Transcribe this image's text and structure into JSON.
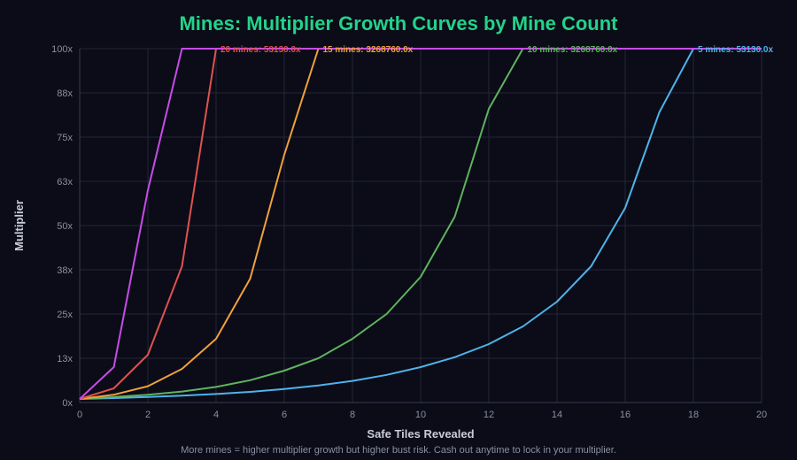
{
  "chart_data": {
    "type": "line",
    "title": "Mines: Multiplier Growth Curves by Mine Count",
    "title_color": "#22d38a",
    "xlabel": "Safe Tiles Revealed",
    "ylabel": "Multiplier",
    "footnote": "More mines = higher multiplier growth but higher bust risk. Cash out anytime to lock in your multiplier.",
    "xlim": [
      0,
      20
    ],
    "ylim": [
      0,
      100
    ],
    "x_ticks": [
      0,
      2,
      4,
      6,
      8,
      10,
      12,
      14,
      16,
      18,
      20
    ],
    "y_ticks": [
      0,
      12.5,
      25,
      37.5,
      50,
      62.5,
      75,
      87.5,
      100
    ],
    "y_tick_labels": [
      "0x",
      "13x",
      "25x",
      "38x",
      "50x",
      "63x",
      "75x",
      "88x",
      "100x"
    ],
    "grid": true,
    "series": [
      {
        "color": "#4fb3ea",
        "end_label": "5 mines: 53130.0x",
        "points": [
          [
            0,
            1
          ],
          [
            1,
            1.25
          ],
          [
            2,
            1.54
          ],
          [
            3,
            1.92
          ],
          [
            4,
            2.4
          ],
          [
            5,
            3.0
          ],
          [
            6,
            3.8
          ],
          [
            7,
            4.8
          ],
          [
            8,
            6.1
          ],
          [
            9,
            7.8
          ],
          [
            10,
            10.0
          ],
          [
            11,
            12.8
          ],
          [
            12,
            16.5
          ],
          [
            13,
            21.5
          ],
          [
            14,
            28.5
          ],
          [
            15,
            38.5
          ],
          [
            16,
            55.0
          ],
          [
            17,
            82.0
          ],
          [
            18,
            100
          ],
          [
            19,
            100
          ],
          [
            20,
            100
          ]
        ]
      },
      {
        "color": "#5fb35f",
        "end_label": "10 mines: 3268760.0x",
        "points": [
          [
            0,
            1
          ],
          [
            1,
            1.55
          ],
          [
            2,
            2.2
          ],
          [
            3,
            3.1
          ],
          [
            4,
            4.4
          ],
          [
            5,
            6.3
          ],
          [
            6,
            9.0
          ],
          [
            7,
            12.5
          ],
          [
            8,
            18.0
          ],
          [
            9,
            25.0
          ],
          [
            10,
            35.5
          ],
          [
            11,
            52.5
          ],
          [
            12,
            83.0
          ],
          [
            13,
            100
          ],
          [
            14,
            100
          ],
          [
            15,
            100
          ],
          [
            16,
            100
          ],
          [
            17,
            100
          ],
          [
            18,
            100
          ],
          [
            19,
            100
          ],
          [
            20,
            100
          ]
        ]
      },
      {
        "color": "#f0a13a",
        "end_label": "15 mines: 3268760.0x",
        "points": [
          [
            0,
            1
          ],
          [
            1,
            2.2
          ],
          [
            2,
            4.6
          ],
          [
            3,
            9.5
          ],
          [
            4,
            18.0
          ],
          [
            5,
            35.0
          ],
          [
            6,
            70.0
          ],
          [
            7,
            100
          ],
          [
            8,
            100
          ],
          [
            9,
            100
          ],
          [
            10,
            100
          ],
          [
            11,
            100
          ],
          [
            12,
            100
          ],
          [
            13,
            100
          ],
          [
            14,
            100
          ],
          [
            15,
            100
          ],
          [
            16,
            100
          ],
          [
            17,
            100
          ],
          [
            18,
            100
          ],
          [
            19,
            100
          ],
          [
            20,
            100
          ]
        ]
      },
      {
        "color": "#e0524f",
        "end_label": "20 mines: 53130.0x",
        "points": [
          [
            0,
            1
          ],
          [
            1,
            4.0
          ],
          [
            2,
            13.5
          ],
          [
            3,
            38.5
          ],
          [
            4,
            100
          ],
          [
            5,
            100
          ],
          [
            6,
            100
          ],
          [
            7,
            100
          ],
          [
            8,
            100
          ],
          [
            9,
            100
          ],
          [
            10,
            100
          ],
          [
            11,
            100
          ],
          [
            12,
            100
          ],
          [
            13,
            100
          ],
          [
            14,
            100
          ],
          [
            15,
            100
          ],
          [
            16,
            100
          ],
          [
            17,
            100
          ],
          [
            18,
            100
          ],
          [
            19,
            100
          ],
          [
            20,
            100
          ]
        ]
      },
      {
        "color": "#c84be8",
        "end_label": "",
        "points": [
          [
            0,
            1
          ],
          [
            1,
            10.0
          ],
          [
            2,
            60.0
          ],
          [
            3,
            100
          ],
          [
            4,
            100
          ],
          [
            5,
            100
          ],
          [
            6,
            100
          ],
          [
            7,
            100
          ],
          [
            8,
            100
          ],
          [
            9,
            100
          ],
          [
            10,
            100
          ],
          [
            11,
            100
          ],
          [
            12,
            100
          ],
          [
            13,
            100
          ],
          [
            14,
            100
          ],
          [
            15,
            100
          ],
          [
            16,
            100
          ],
          [
            17,
            100
          ],
          [
            18,
            100
          ],
          [
            19,
            100
          ],
          [
            20,
            100
          ]
        ]
      }
    ]
  }
}
